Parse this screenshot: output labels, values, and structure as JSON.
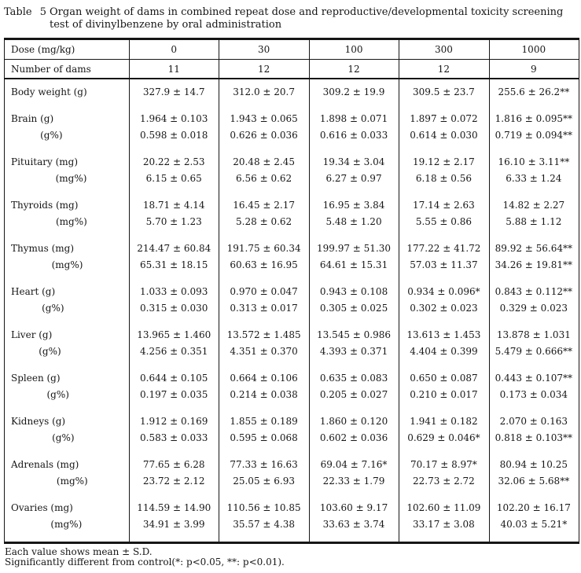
{
  "title": {
    "tag": "Table 5",
    "text": "Organ weight of dams in combined repeat dose and reproductive/developmental toxicity screening test of divinylbenzene by oral administration"
  },
  "table": {
    "header_rows": [
      {
        "label": "Dose (mg/kg)",
        "values": [
          "0",
          "30",
          "100",
          "300",
          "1000"
        ]
      },
      {
        "label": "Number of dams",
        "values": [
          "11",
          "12",
          "12",
          "12",
          "9"
        ]
      }
    ],
    "groups": [
      {
        "rows": [
          {
            "label": "Body weight (g)",
            "values": [
              "327.9 ± 14.7",
              "312.0 ± 20.7",
              "309.2 ± 19.9",
              "309.5 ± 23.7",
              "255.6 ± 26.2**"
            ]
          }
        ]
      },
      {
        "rows": [
          {
            "label": "Brain (g)",
            "values": [
              "1.964 ± 0.103",
              "1.943 ± 0.065",
              "1.898 ± 0.071",
              "1.897 ± 0.072",
              "1.816 ± 0.095**"
            ]
          },
          {
            "label": "(g%)",
            "values": [
              "0.598 ± 0.018",
              "0.626 ± 0.036",
              "0.616 ± 0.033",
              "0.614 ± 0.030",
              "0.719 ± 0.094**"
            ]
          }
        ]
      },
      {
        "rows": [
          {
            "label": "Pituitary (mg)",
            "values": [
              "20.22 ± 2.53",
              "20.48 ± 2.45",
              "19.34 ± 3.04",
              "19.12 ± 2.17",
              "16.10 ± 3.11**"
            ]
          },
          {
            "label": "(mg%)",
            "values": [
              "6.15 ± 0.65",
              "6.56 ± 0.62",
              "6.27 ± 0.97",
              "6.18 ± 0.56",
              "6.33 ± 1.24"
            ]
          }
        ]
      },
      {
        "rows": [
          {
            "label": "Thyroids (mg)",
            "values": [
              "18.71 ± 4.14",
              "16.45 ± 2.17",
              "16.95 ± 3.84",
              "17.14 ± 2.63",
              "14.82 ± 2.27"
            ]
          },
          {
            "label": "(mg%)",
            "values": [
              "5.70 ± 1.23",
              "5.28 ± 0.62",
              "5.48 ± 1.20",
              "5.55 ± 0.86",
              "5.88 ± 1.12"
            ]
          }
        ]
      },
      {
        "rows": [
          {
            "label": "Thymus (mg)",
            "values": [
              "214.47 ± 60.84",
              "191.75 ± 60.34",
              "199.97 ± 51.30",
              "177.22 ± 41.72",
              "89.92 ± 56.64**"
            ]
          },
          {
            "label": "(mg%)",
            "values": [
              "65.31 ± 18.15",
              "60.63 ± 16.95",
              "64.61 ± 15.31",
              "57.03 ± 11.37",
              "34.26 ± 19.81**"
            ]
          }
        ]
      },
      {
        "rows": [
          {
            "label": "Heart (g)",
            "values": [
              "1.033 ± 0.093",
              "0.970 ± 0.047",
              "0.943 ± 0.108",
              "0.934 ± 0.096*",
              "0.843 ± 0.112**"
            ]
          },
          {
            "label": "(g%)",
            "values": [
              "0.315 ± 0.030",
              "0.313 ± 0.017",
              "0.305 ± 0.025",
              "0.302 ± 0.023",
              "0.329 ± 0.023"
            ]
          }
        ]
      },
      {
        "rows": [
          {
            "label": "Liver (g)",
            "values": [
              "13.965 ± 1.460",
              "13.572 ± 1.485",
              "13.545 ± 0.986",
              "13.613 ± 1.453",
              "13.878 ± 1.031"
            ]
          },
          {
            "label": "(g%)",
            "values": [
              "4.256 ± 0.351",
              "4.351 ± 0.370",
              "4.393 ± 0.371",
              "4.404 ± 0.399",
              "5.479 ± 0.666**"
            ]
          }
        ]
      },
      {
        "rows": [
          {
            "label": "Spleen (g)",
            "values": [
              "0.644 ± 0.105",
              "0.664 ± 0.106",
              "0.635 ± 0.083",
              "0.650 ± 0.087",
              "0.443 ± 0.107**"
            ]
          },
          {
            "label": "(g%)",
            "values": [
              "0.197 ± 0.035",
              "0.214 ± 0.038",
              "0.205 ± 0.027",
              "0.210 ± 0.017",
              "0.173 ± 0.034"
            ]
          }
        ]
      },
      {
        "rows": [
          {
            "label": "Kidneys (g)",
            "values": [
              "1.912 ± 0.169",
              "1.855 ± 0.189",
              "1.860 ± 0.120",
              "1.941 ± 0.182",
              "2.070 ± 0.163"
            ]
          },
          {
            "label": "(g%)",
            "values": [
              "0.583 ± 0.033",
              "0.595 ± 0.068",
              "0.602 ± 0.036",
              "0.629 ± 0.046*",
              "0.818 ± 0.103**"
            ]
          }
        ]
      },
      {
        "rows": [
          {
            "label": "Adrenals (mg)",
            "values": [
              "77.65 ± 6.28",
              "77.33 ± 16.63",
              "69.04 ± 7.16*",
              "70.17 ± 8.97*",
              "80.94 ± 10.25"
            ]
          },
          {
            "label": "(mg%)",
            "values": [
              "23.72 ± 2.12",
              "25.05 ± 6.93",
              "22.33 ± 1.79",
              "22.73 ± 2.72",
              "32.06 ± 5.68**"
            ]
          }
        ]
      },
      {
        "rows": [
          {
            "label": "Ovaries (mg)",
            "values": [
              "114.59 ± 14.90",
              "110.56 ± 10.85",
              "103.60 ± 9.17",
              "102.60 ± 11.09",
              "102.20 ± 16.17"
            ]
          },
          {
            "label": "(mg%)",
            "values": [
              "34.91 ± 3.99",
              "35.57 ± 4.38",
              "33.63 ± 3.74",
              "33.17 ± 3.08",
              "40.03 ± 5.21*"
            ]
          }
        ]
      }
    ]
  },
  "footnotes": [
    "Each value shows mean ± S.D.",
    "Significantly different from control(*: p<0.05, **: p<0.01)."
  ]
}
